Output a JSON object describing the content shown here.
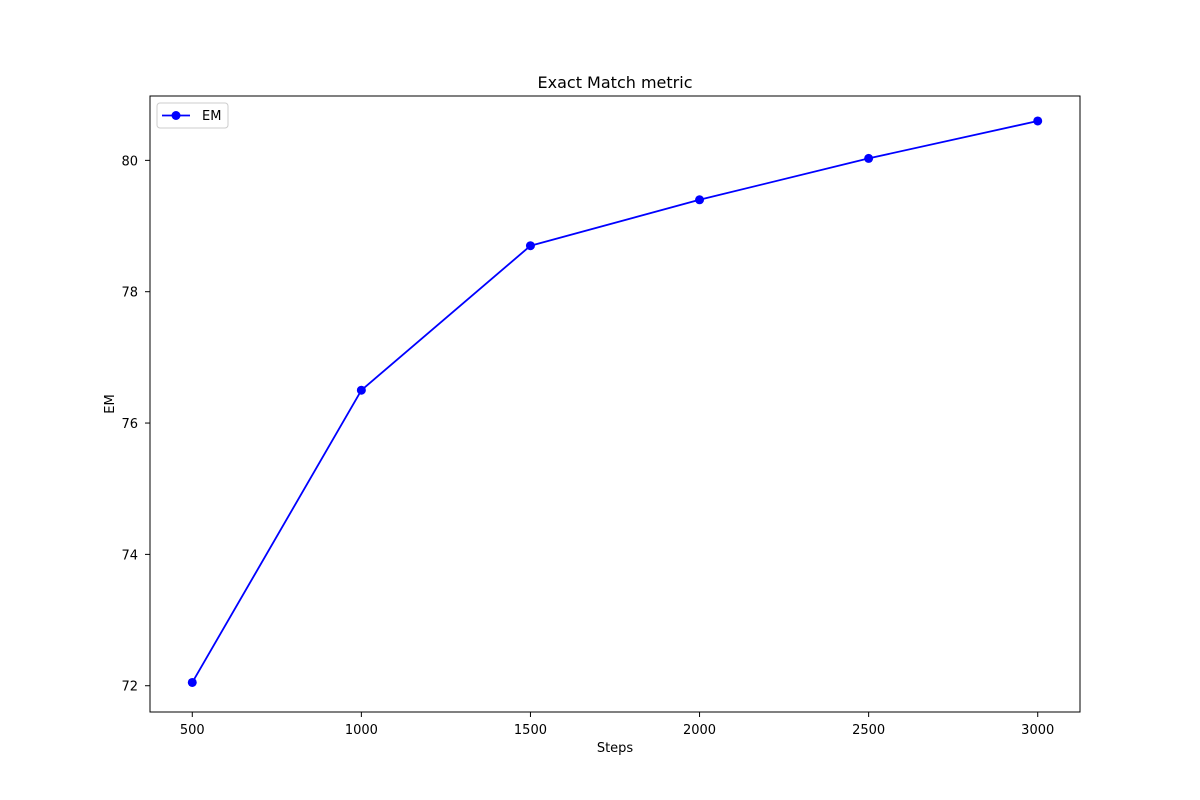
{
  "chart_data": {
    "type": "line",
    "title": "Exact Match metric",
    "xlabel": "Steps",
    "ylabel": "EM",
    "xlim": [
      375,
      3125
    ],
    "ylim": [
      71.6,
      80.98
    ],
    "x_ticks": [
      500,
      1000,
      1500,
      2000,
      2500,
      3000
    ],
    "y_ticks": [
      72,
      74,
      76,
      78,
      80
    ],
    "grid": false,
    "legend": "top-left",
    "series": [
      {
        "name": "EM",
        "color": "#0000ff",
        "marker": "circle",
        "x": [
          500,
          1000,
          1500,
          2000,
          2500,
          3000
        ],
        "y": [
          72.05,
          76.5,
          78.7,
          79.4,
          80.03,
          80.6
        ]
      }
    ]
  }
}
